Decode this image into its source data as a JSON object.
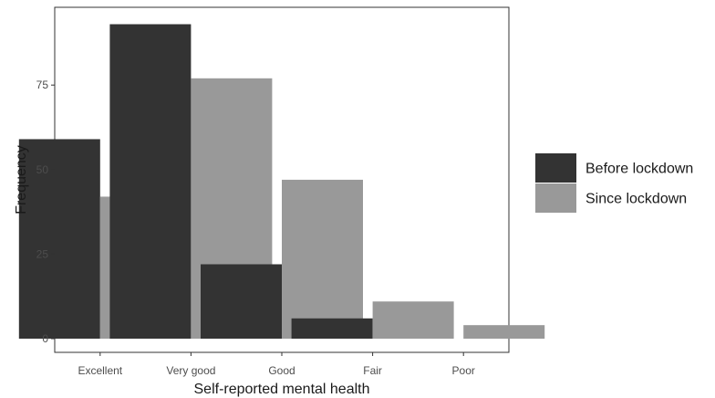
{
  "chart_data": {
    "type": "bar",
    "title": "",
    "xlabel": "Self-reported mental health",
    "ylabel": "Frequency",
    "categories": [
      "Excellent",
      "Very good",
      "Good",
      "Fair",
      "Poor"
    ],
    "series": [
      {
        "name": "Before lockdown",
        "color": "#333333",
        "values": [
          59,
          93,
          22,
          6,
          0
        ]
      },
      {
        "name": "Since lockdown",
        "color": "#999999",
        "values": [
          42,
          77,
          47,
          11,
          4
        ]
      }
    ],
    "ylim": [
      0,
      98
    ],
    "yticks": [
      0,
      25,
      50,
      75
    ],
    "grid": false,
    "legend_position": "right"
  }
}
